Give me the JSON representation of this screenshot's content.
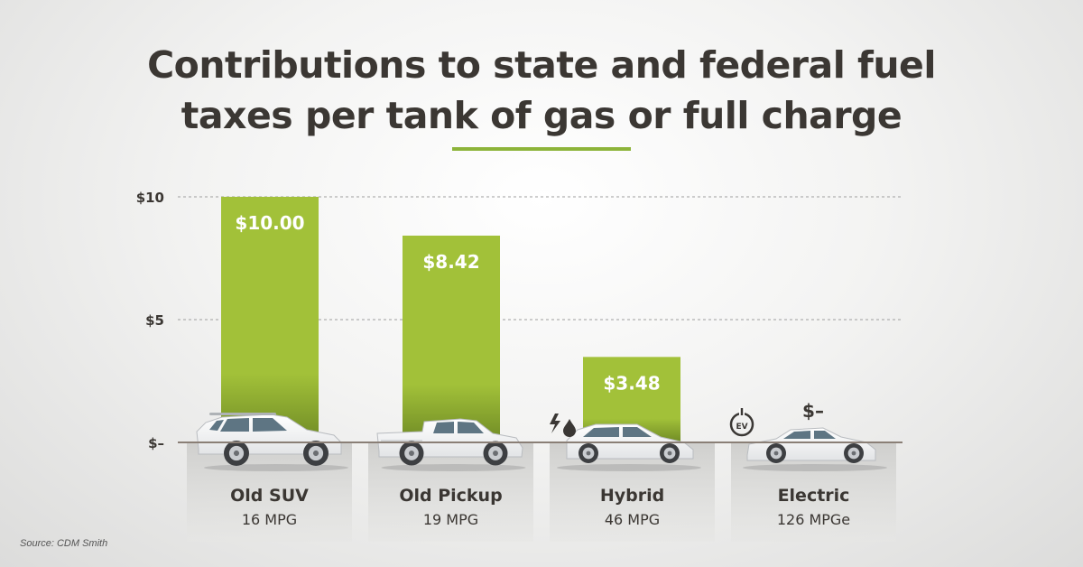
{
  "title": {
    "line1": "Contributions to state and federal fuel",
    "line2": "taxes per tank of gas or full charge"
  },
  "source": "Source: CDM Smith",
  "colors": {
    "bar_top": "#a2c139",
    "bar_bottom": "#6f8a25",
    "text_dark": "#3b3733",
    "accent": "#8db43a",
    "panel": "#d4d4d2"
  },
  "chart_data": {
    "type": "bar",
    "categories": [
      "Old SUV",
      "Old Pickup",
      "Hybrid",
      "Electric"
    ],
    "subtitles": [
      "16 MPG",
      "19 MPG",
      "46 MPG",
      "126 MPGe"
    ],
    "values": [
      10.0,
      8.42,
      3.48,
      0
    ],
    "data_labels": [
      "$10.00",
      "$8.42",
      "$3.48",
      "$–"
    ],
    "yticks": [
      0,
      5,
      10
    ],
    "ytick_labels": [
      "$–",
      "$5",
      "$10"
    ],
    "ylim": [
      0,
      10
    ],
    "grid": true,
    "icons": [
      "suv-icon",
      "pickup-truck-icon",
      "hatchback-icon",
      "sedan-icon"
    ],
    "badges": [
      "",
      "",
      "lightning-fuel-icon",
      "ev-plug-icon"
    ]
  }
}
